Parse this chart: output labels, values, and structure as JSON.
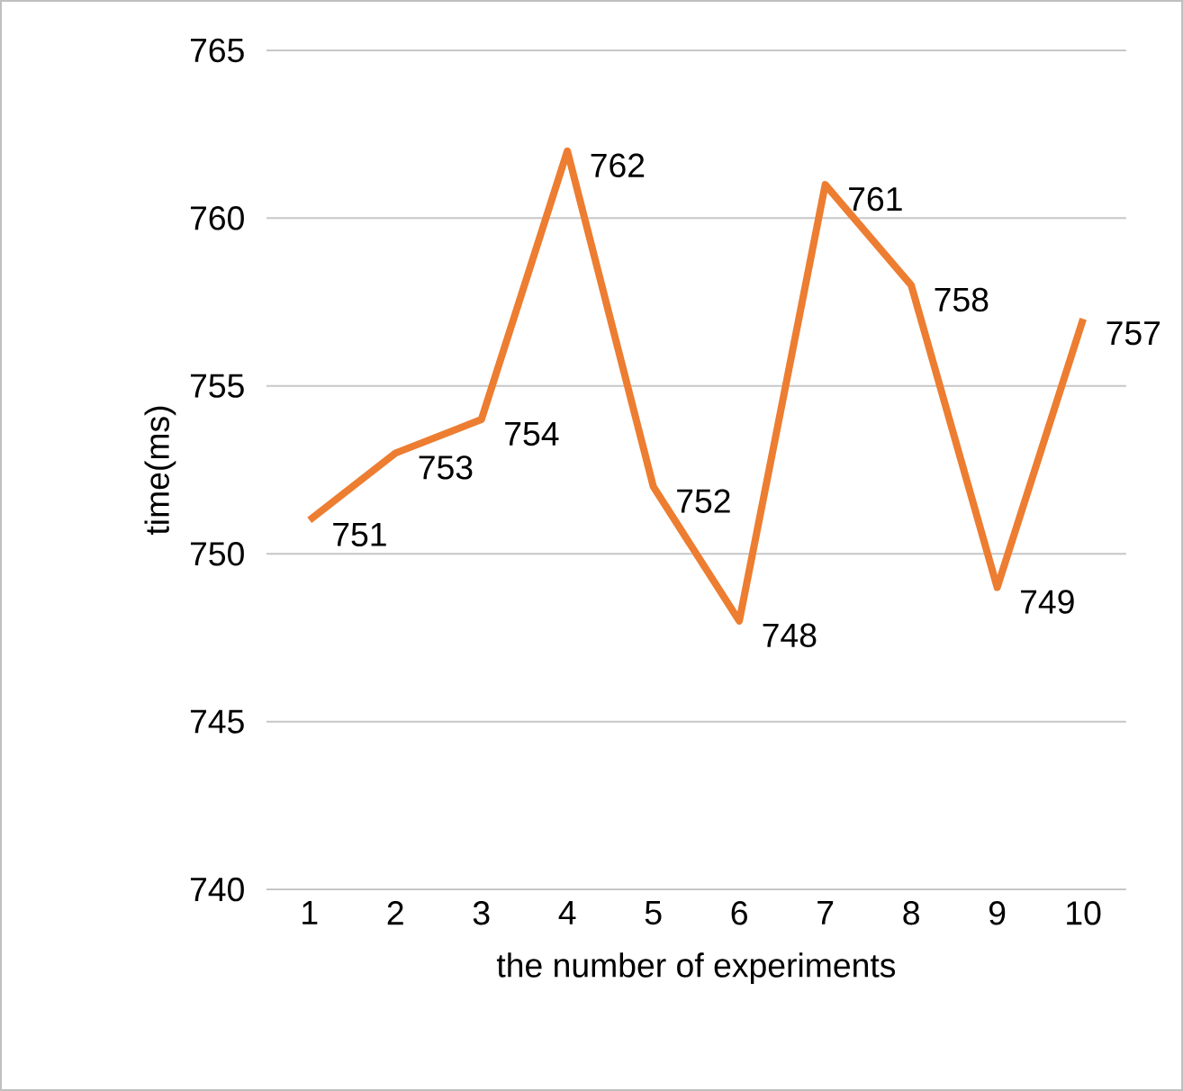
{
  "chart_data": {
    "type": "line",
    "xlabel": "the number of experiments",
    "ylabel": "time(ms)",
    "categories": [
      "1",
      "2",
      "3",
      "4",
      "5",
      "6",
      "7",
      "8",
      "9",
      "10"
    ],
    "series": [
      {
        "color": "#ed7d31",
        "values": [
          751,
          753,
          754,
          762,
          752,
          748,
          761,
          758,
          749,
          757
        ]
      }
    ],
    "ylim": [
      740,
      765
    ],
    "yticks": [
      740,
      745,
      750,
      755,
      760,
      765
    ],
    "grid": "y",
    "marker": "none",
    "line_style": "solid",
    "data_labels": true
  }
}
